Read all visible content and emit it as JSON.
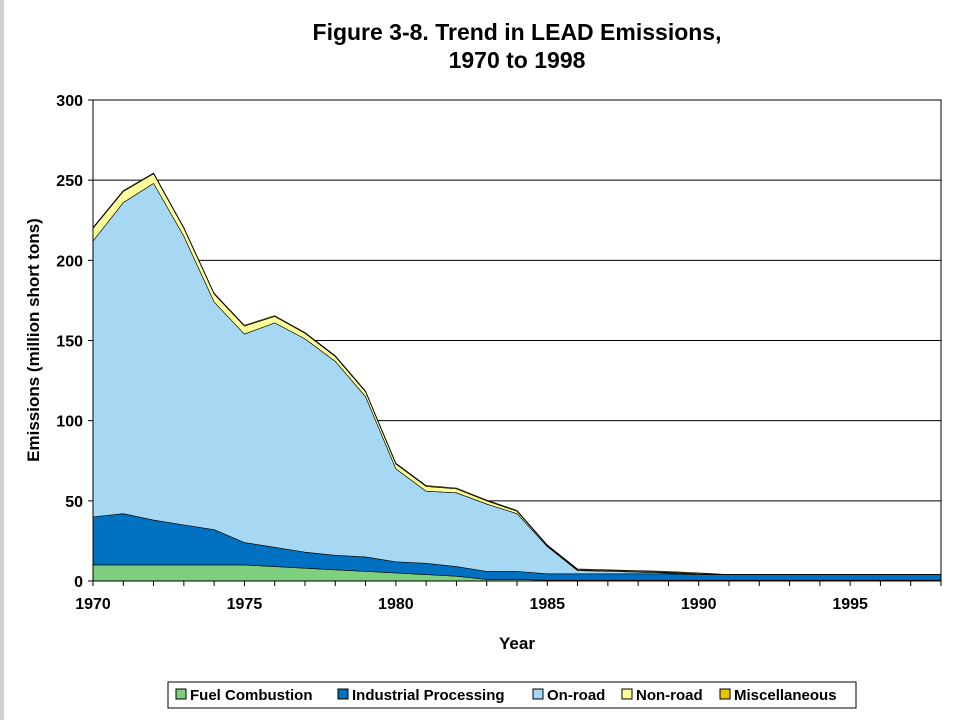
{
  "chart_data": {
    "type": "area",
    "stacked": true,
    "title": "Figure 3-8.  Trend in LEAD Emissions,",
    "subtitle": "1970 to 1998",
    "xlabel": "Year",
    "ylabel": "Emissions (million short tons)",
    "xlim": [
      1970,
      1998
    ],
    "ylim": [
      0,
      300
    ],
    "x_ticks": [
      "1970",
      "1975",
      "1980",
      "1985",
      "1990",
      "1995"
    ],
    "y_ticks": [
      "0",
      "50",
      "100",
      "150",
      "200",
      "250",
      "300"
    ],
    "grid": "horizontal",
    "legend_position": "bottom",
    "x": [
      1970,
      1971,
      1972,
      1973,
      1974,
      1975,
      1976,
      1977,
      1978,
      1979,
      1980,
      1981,
      1982,
      1983,
      1984,
      1985,
      1986,
      1987,
      1988,
      1989,
      1990,
      1991,
      1992,
      1993,
      1994,
      1995,
      1996,
      1997,
      1998
    ],
    "series": [
      {
        "name": "Fuel Combustion",
        "color": "#7ecf7e",
        "values": [
          10,
          10,
          10,
          10,
          10,
          10,
          9,
          8,
          7,
          6,
          5,
          4,
          3,
          1,
          1,
          0.5,
          0.5,
          0.5,
          0.5,
          0.5,
          0.5,
          0.5,
          0.5,
          0.5,
          0.5,
          0.5,
          0.5,
          0.5,
          0.5
        ]
      },
      {
        "name": "Industrial Processing",
        "color": "#0070c0",
        "values": [
          30,
          32,
          28,
          25,
          22,
          14,
          12,
          10,
          9,
          9,
          7,
          7,
          6,
          5,
          5,
          4,
          4,
          4,
          4,
          4,
          3.5,
          3.5,
          3.5,
          3.5,
          3.5,
          3.5,
          3.5,
          3.5,
          3.5
        ]
      },
      {
        "name": "On-road",
        "color": "#a6d8f4",
        "values": [
          172,
          194,
          210,
          180,
          142,
          130,
          140,
          133,
          121,
          100,
          58,
          45,
          46,
          42,
          36,
          17,
          2,
          1.5,
          1,
          0.5,
          0,
          0,
          0,
          0,
          0,
          0,
          0,
          0,
          0
        ]
      },
      {
        "name": "Non-road",
        "color": "#ffff99",
        "values": [
          8,
          7,
          6,
          5,
          5,
          5,
          4,
          3.5,
          3,
          3,
          3,
          3,
          2.5,
          2,
          1.5,
          0.5,
          0.5,
          0.5,
          0.5,
          0.5,
          0.5,
          0,
          0,
          0,
          0,
          0,
          0,
          0,
          0
        ]
      },
      {
        "name": "Miscellaneous",
        "color": "#e8c400",
        "values": [
          0.5,
          0.5,
          0.5,
          0.5,
          0.5,
          0.5,
          0.5,
          0.5,
          0.5,
          0.5,
          0.5,
          0.5,
          0.5,
          0.5,
          0.5,
          0.5,
          0.5,
          0.5,
          0.5,
          0.5,
          0.5,
          0,
          0,
          0,
          0,
          0,
          0,
          0,
          0
        ]
      }
    ]
  }
}
